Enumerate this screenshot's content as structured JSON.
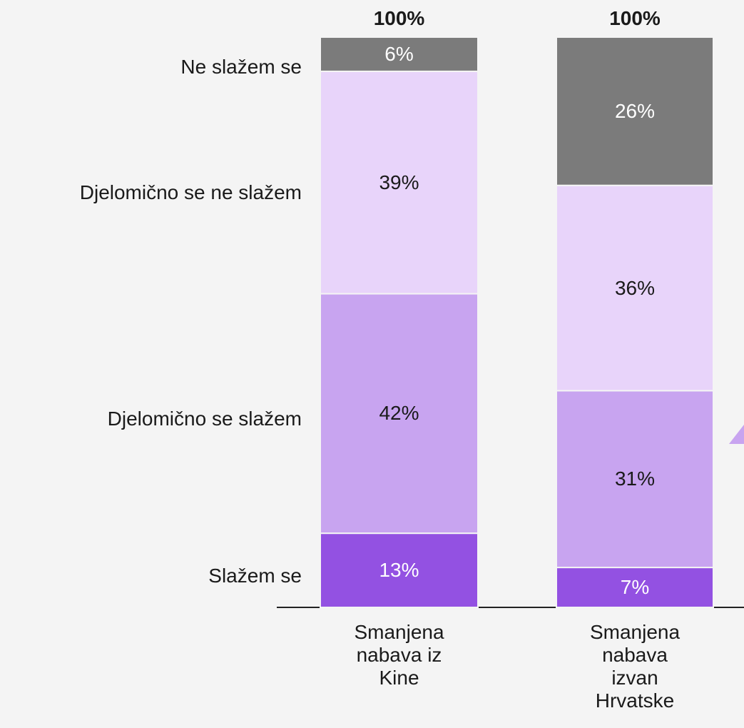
{
  "chart_data": {
    "type": "stacked-bar",
    "categories": [
      "Smanjena nabava iz Kine",
      "Smanjena nabava izvan Hrvatske"
    ],
    "series": [
      {
        "name": "Slažem se",
        "color": "#9351e2",
        "values": [
          13,
          7
        ],
        "value_labels": [
          "13%",
          "7%"
        ]
      },
      {
        "name": "Djelomično se slažem",
        "color": "#c8a4f0",
        "values": [
          42,
          31
        ],
        "value_labels": [
          "42%",
          "31%"
        ]
      },
      {
        "name": "Djelomično se ne slažem",
        "color": "#e8d4fa",
        "values": [
          39,
          36
        ],
        "value_labels": [
          "39%",
          "36%"
        ]
      },
      {
        "name": "Ne slažem se",
        "color": "#7b7b7b",
        "values": [
          6,
          26
        ],
        "value_labels": [
          "6%",
          "26%"
        ]
      }
    ],
    "totals": [
      100,
      100
    ],
    "total_labels": [
      "100%",
      "100%"
    ],
    "ylim": [
      0,
      100
    ]
  }
}
